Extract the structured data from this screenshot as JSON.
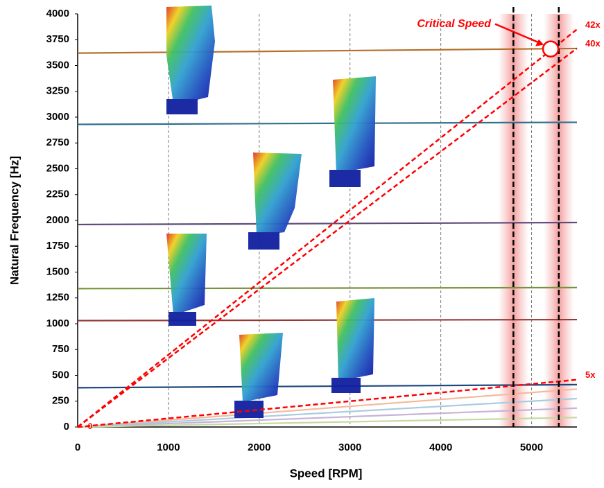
{
  "chart_data": {
    "type": "line",
    "xlabel": "Speed [RPM]",
    "ylabel": "Natural Frequency [Hz]",
    "xlim": [
      0,
      5500
    ],
    "ylim": [
      0,
      4000
    ],
    "xticks": [
      0,
      1000,
      2000,
      3000,
      4000,
      5000
    ],
    "yticks": [
      0,
      250,
      500,
      750,
      1000,
      1250,
      1500,
      1750,
      2000,
      2250,
      2500,
      2750,
      3000,
      3250,
      3500,
      3750,
      4000
    ],
    "grid": true,
    "series": [
      {
        "color": "#b5702a",
        "x": [
          0,
          5500
        ],
        "values": [
          3620,
          3665
        ]
      },
      {
        "color": "#31708f",
        "x": [
          0,
          5500
        ],
        "values": [
          2930,
          2950
        ]
      },
      {
        "color": "#604a7b",
        "x": [
          0,
          5500
        ],
        "values": [
          1960,
          1980
        ]
      },
      {
        "color": "#77933c",
        "x": [
          0,
          5500
        ],
        "values": [
          1340,
          1350
        ]
      },
      {
        "color": "#953735",
        "x": [
          0,
          5500
        ],
        "values": [
          1030,
          1040
        ]
      },
      {
        "color": "#1f497d",
        "x": [
          0,
          5500
        ],
        "values": [
          380,
          410
        ]
      },
      {
        "name": "42x",
        "color": "#ff0000",
        "dashed": true,
        "x": [
          0,
          5500
        ],
        "values": [
          0,
          3850
        ]
      },
      {
        "name": "40x",
        "color": "#ff0000",
        "dashed": true,
        "x": [
          0,
          5500
        ],
        "values": [
          0,
          3667
        ]
      },
      {
        "name": "5x",
        "color": "#ff0000",
        "dashed": true,
        "x": [
          0,
          5500
        ],
        "values": [
          0,
          458
        ]
      },
      {
        "color": "#f7b89a",
        "x": [
          0,
          5500
        ],
        "values": [
          0,
          367
        ]
      },
      {
        "color": "#a9cbe0",
        "x": [
          0,
          5500
        ],
        "values": [
          0,
          275
        ]
      },
      {
        "color": "#c6b3d6",
        "x": [
          0,
          5500
        ],
        "values": [
          0,
          183
        ]
      },
      {
        "color": "#c5d9a0",
        "x": [
          0,
          5500
        ],
        "values": [
          0,
          92
        ]
      }
    ],
    "vlines": [
      4800,
      5300
    ],
    "critical_label": "Critical Speed",
    "critical_point": {
      "x": 5210,
      "y": 3660
    },
    "origin_label": "0"
  }
}
